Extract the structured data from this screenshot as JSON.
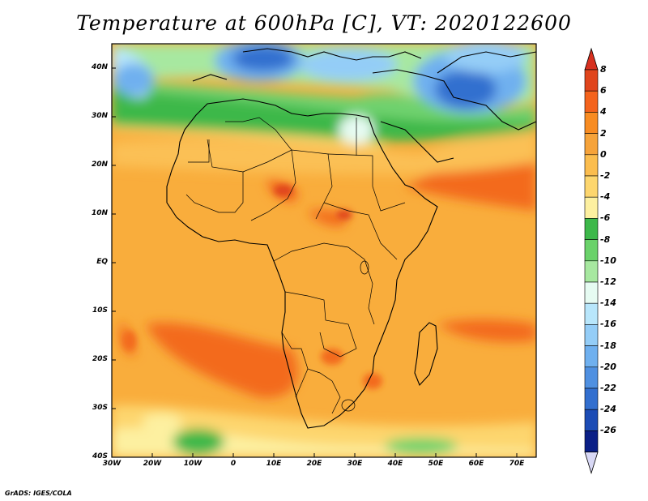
{
  "title": "Temperature at 600hPa [C], VT: 2020122600",
  "credit": "GrADS: IGES/COLA",
  "map": {
    "lat_labels": [
      "40N",
      "30N",
      "20N",
      "10N",
      "EQ",
      "10S",
      "20S",
      "30S",
      "40S"
    ],
    "lon_labels": [
      "30W",
      "20W",
      "10W",
      "0",
      "10E",
      "20E",
      "30E",
      "40E",
      "50E",
      "60E",
      "70E"
    ]
  },
  "colorbar": {
    "labels": [
      "8",
      "6",
      "4",
      "2",
      "0",
      "-2",
      "-4",
      "-6",
      "-8",
      "-10",
      "-12",
      "-14",
      "-16",
      "-18",
      "-20",
      "-22",
      "-24",
      "-26"
    ],
    "colors": [
      "#e0451c",
      "#f4631c",
      "#f88c22",
      "#f6a33a",
      "#fbbd4e",
      "#fdd66e",
      "#fdf0a0",
      "#3db84a",
      "#6ad26a",
      "#a7e8a0",
      "#e6fbf2",
      "#b8e6fb",
      "#94cdf7",
      "#6fb0ef",
      "#4f90e1",
      "#326fcf",
      "#1c4cb5",
      "#0a1f86"
    ],
    "top_arrow_color": "#d7301f",
    "bottom_arrow_color": "#d8d8f5"
  }
}
